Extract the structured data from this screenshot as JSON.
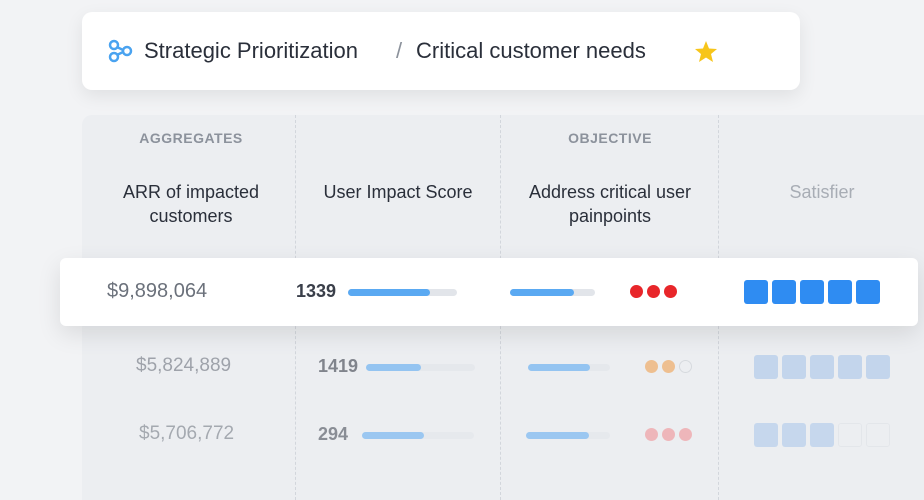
{
  "breadcrumb": {
    "parent": "Strategic Prioritization",
    "separator": "/",
    "current": "Critical customer needs"
  },
  "table": {
    "groups": {
      "aggregates": "AGGREGATES",
      "objective": "OBJECTIVE"
    },
    "columns": {
      "arr": "ARR of impacted customers",
      "score": "User Impact Score",
      "objective": "Address critical user painpoints",
      "satisfier": "Satisfier"
    },
    "rows": [
      {
        "arr": "$9,898,064",
        "score": 1339,
        "score_bar": 0.75,
        "objective_bar": 0.75,
        "dots": 3,
        "dot_color": "#e8262a",
        "squares": 5,
        "square_color": "#2f8cf2"
      },
      {
        "arr": "$5,824,889",
        "score": 1419,
        "score_bar": 0.5,
        "objective_bar": 0.75,
        "dots": 2,
        "dot_color": "#f0a050",
        "squares": 5,
        "square_color": "#a8c6ea"
      },
      {
        "arr": "$5,706,772",
        "score": 294,
        "score_bar": 0.55,
        "objective_bar": 0.75,
        "dots": 3,
        "dot_color": "#f08a8e",
        "squares": 3,
        "square_color": "#a8c6ea"
      }
    ]
  }
}
